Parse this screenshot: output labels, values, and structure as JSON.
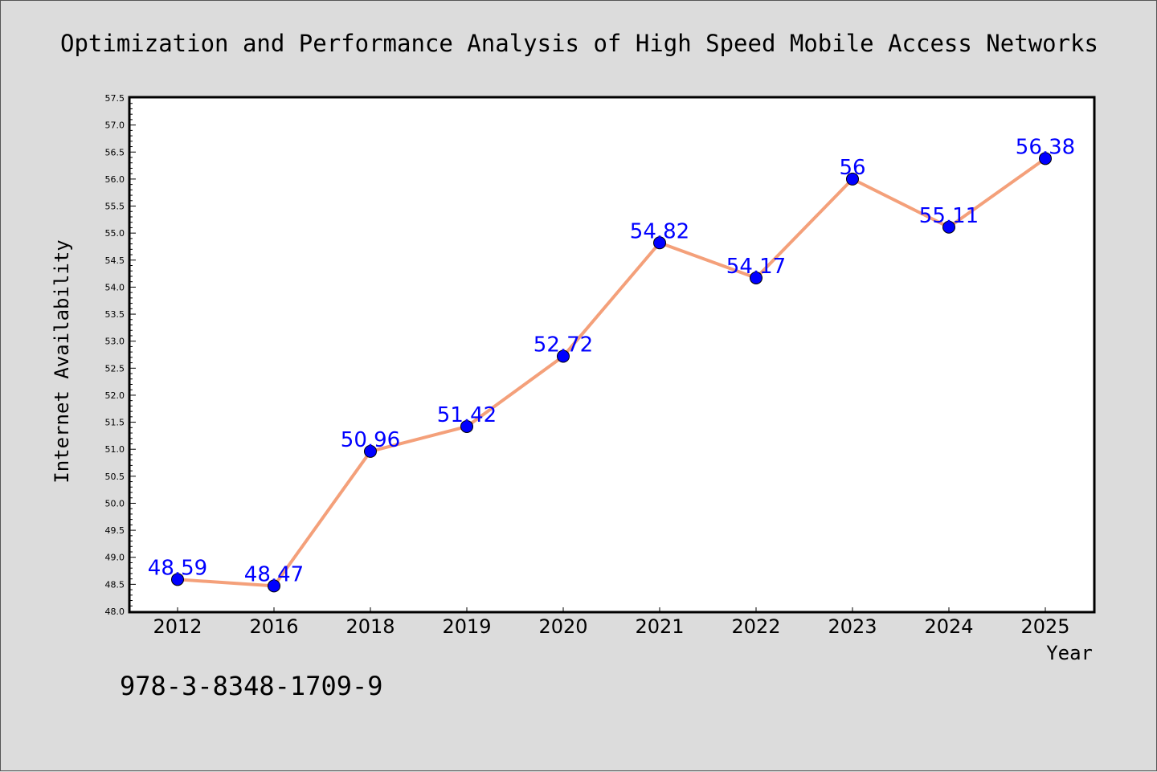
{
  "chart_data": {
    "type": "line",
    "title": "Optimization and Performance Analysis of High Speed Mobile Access Networks",
    "xlabel": "Year",
    "ylabel": "Internet Availability",
    "categories": [
      "2012",
      "2016",
      "2018",
      "2019",
      "2020",
      "2021",
      "2022",
      "2023",
      "2024",
      "2025"
    ],
    "series": [
      {
        "values": [
          48.59,
          48.47,
          50.96,
          51.42,
          52.72,
          54.82,
          54.17,
          56,
          55.11,
          56.38
        ]
      }
    ],
    "data_labels": [
      "48.59",
      "48.47",
      "50.96",
      "51.42",
      "52.72",
      "54.82",
      "54.17",
      "56",
      "55.11",
      "56.38"
    ],
    "ylim": [
      48.0,
      57.5
    ],
    "yticks": [
      "48.0",
      "48.5",
      "49.0",
      "49.5",
      "50.0",
      "50.5",
      "51.0",
      "51.5",
      "52.0",
      "52.5",
      "53.0",
      "53.5",
      "54.0",
      "54.5",
      "55.0",
      "55.5",
      "56.0",
      "56.5",
      "57.0",
      "57.5"
    ],
    "grid": false,
    "legend": "none",
    "colors": {
      "line": "#f4a07a",
      "marker": "#0000ff",
      "data_label": "#0000ff",
      "plot_background": "#ffffff",
      "figure_background": "#dcdcdc"
    }
  },
  "footer": {
    "isbn": "978-3-8348-1709-9"
  }
}
